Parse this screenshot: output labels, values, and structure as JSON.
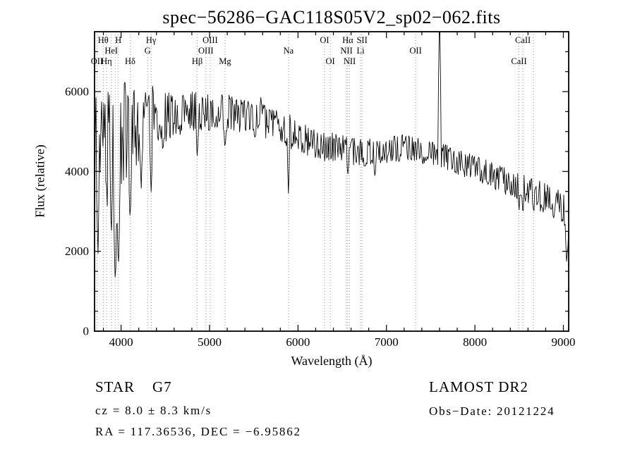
{
  "title": "spec−56286−GAC118S05V2_sp02−062.fits",
  "footer": {
    "class_label": "STAR    G7",
    "survey": "LAMOST DR2",
    "cz": "cz = 8.0 ± 8.3 km/s",
    "obs_date": "Obs−Date: 20121224",
    "coords": "RA = 117.36536, DEC = −6.95862"
  },
  "chart_data": {
    "type": "line",
    "title": "spec−56286−GAC118S05V2_sp02−062.fits",
    "xlabel": "Wavelength (Å)",
    "ylabel": "Flux (relative)",
    "xlim": [
      3700,
      9060
    ],
    "ylim": [
      0,
      7500
    ],
    "grid": false,
    "x_ticks": {
      "major": [
        4000,
        5000,
        6000,
        7000,
        8000,
        9000
      ],
      "minor_step": 200
    },
    "y_ticks": {
      "major": [
        0,
        2000,
        4000,
        6000
      ],
      "minor_step": 500
    },
    "line_color": "#000000",
    "marker_line_color": "#999999",
    "envelope": [
      [
        3700,
        3700
      ],
      [
        3740,
        4200
      ],
      [
        3780,
        4400
      ],
      [
        3820,
        4550
      ],
      [
        3860,
        4650
      ],
      [
        3900,
        4750
      ],
      [
        3950,
        4850
      ],
      [
        4000,
        4950
      ],
      [
        4050,
        5000
      ],
      [
        4100,
        5050
      ],
      [
        4150,
        5080
      ],
      [
        4200,
        5120
      ],
      [
        4250,
        5160
      ],
      [
        4300,
        5200
      ],
      [
        4350,
        5250
      ],
      [
        4400,
        5300
      ],
      [
        4500,
        5350
      ],
      [
        4600,
        5420
      ],
      [
        4700,
        5470
      ],
      [
        4800,
        5500
      ],
      [
        4900,
        5510
      ],
      [
        5000,
        5500
      ],
      [
        5100,
        5480
      ],
      [
        5200,
        5460
      ],
      [
        5300,
        5420
      ],
      [
        5400,
        5380
      ],
      [
        5500,
        5320
      ],
      [
        5600,
        5250
      ],
      [
        5700,
        5180
      ],
      [
        5800,
        5120
      ],
      [
        5900,
        5020
      ],
      [
        6000,
        4920
      ],
      [
        6100,
        4820
      ],
      [
        6200,
        4720
      ],
      [
        6300,
        4640
      ],
      [
        6400,
        4580
      ],
      [
        6500,
        4530
      ],
      [
        6600,
        4500
      ],
      [
        6700,
        4490
      ],
      [
        6800,
        4500
      ],
      [
        6900,
        4520
      ],
      [
        7000,
        4550
      ],
      [
        7100,
        4580
      ],
      [
        7200,
        4600
      ],
      [
        7300,
        4560
      ],
      [
        7400,
        4510
      ],
      [
        7500,
        4460
      ],
      [
        7600,
        4420
      ],
      [
        7700,
        4330
      ],
      [
        7800,
        4260
      ],
      [
        7900,
        4160
      ],
      [
        8000,
        4060
      ],
      [
        8100,
        3980
      ],
      [
        8200,
        3900
      ],
      [
        8300,
        3820
      ],
      [
        8400,
        3720
      ],
      [
        8500,
        3620
      ],
      [
        8600,
        3520
      ],
      [
        8700,
        3430
      ],
      [
        8800,
        3330
      ],
      [
        8900,
        3230
      ],
      [
        9000,
        3120
      ],
      [
        9060,
        3000
      ]
    ],
    "noise_amplitude": [
      [
        3700,
        1700
      ],
      [
        3760,
        1600
      ],
      [
        3850,
        1500
      ],
      [
        3950,
        1350
      ],
      [
        4050,
        1200
      ],
      [
        4150,
        1050
      ],
      [
        4250,
        900
      ],
      [
        4350,
        750
      ],
      [
        4450,
        650
      ],
      [
        4600,
        560
      ],
      [
        4800,
        510
      ],
      [
        5000,
        480
      ],
      [
        5300,
        460
      ],
      [
        5600,
        440
      ],
      [
        5900,
        440
      ],
      [
        6200,
        410
      ],
      [
        6500,
        380
      ],
      [
        6800,
        360
      ],
      [
        7100,
        340
      ],
      [
        7400,
        320
      ],
      [
        7700,
        320
      ],
      [
        8000,
        340
      ],
      [
        8300,
        350
      ],
      [
        8600,
        370
      ],
      [
        8900,
        420
      ],
      [
        9060,
        480
      ]
    ],
    "noise_seed": 20121224,
    "sample_step": 8,
    "absorption_dips": [
      [
        3740,
        1900,
        10
      ],
      [
        3889,
        2300,
        14
      ],
      [
        3934,
        1100,
        22
      ],
      [
        3969,
        1500,
        22
      ],
      [
        4102,
        2700,
        18
      ],
      [
        4227,
        3400,
        12
      ],
      [
        4340,
        3500,
        16
      ],
      [
        4472,
        4300,
        10
      ],
      [
        4861,
        4300,
        14
      ],
      [
        5175,
        4500,
        16
      ],
      [
        5893,
        3500,
        14
      ],
      [
        6563,
        3800,
        12
      ],
      [
        6870,
        3750,
        14
      ],
      [
        8498,
        3050,
        12
      ],
      [
        8542,
        2850,
        12
      ],
      [
        8662,
        2950,
        12
      ],
      [
        9040,
        1700,
        22
      ]
    ],
    "emission_spikes": [
      [
        3718,
        6200,
        6
      ],
      [
        4047,
        6550,
        7
      ],
      [
        4358,
        6300,
        6
      ],
      [
        5577,
        6050,
        6
      ],
      [
        7600,
        8300,
        14
      ]
    ],
    "spectral_lines": [
      {
        "wl": 3727,
        "label": "OII",
        "row": 3
      },
      {
        "wl": 3798,
        "label": "Hθ",
        "row": 1
      },
      {
        "wl": 3835,
        "label": "Hη",
        "row": 3
      },
      {
        "wl": 3889,
        "label": "HeI",
        "row": 2
      },
      {
        "wl": 3934,
        "label": "",
        "row": 0
      },
      {
        "wl": 3969,
        "label": "H",
        "row": 1
      },
      {
        "wl": 4102,
        "label": "Hδ",
        "row": 3
      },
      {
        "wl": 4300,
        "label": "G",
        "row": 2
      },
      {
        "wl": 4340,
        "label": "Hγ",
        "row": 1
      },
      {
        "wl": 4861,
        "label": "Hβ",
        "row": 3
      },
      {
        "wl": 4959,
        "label": "OIII",
        "row": 2
      },
      {
        "wl": 5007,
        "label": "OIII",
        "row": 1
      },
      {
        "wl": 5175,
        "label": "Mg",
        "row": 3
      },
      {
        "wl": 5893,
        "label": "Na",
        "row": 2
      },
      {
        "wl": 6300,
        "label": "OI",
        "row": 1
      },
      {
        "wl": 6365,
        "label": "OI",
        "row": 3
      },
      {
        "wl": 6548,
        "label": "NII",
        "row": 2
      },
      {
        "wl": 6563,
        "label": "Hα",
        "row": 1
      },
      {
        "wl": 6583,
        "label": "NII",
        "row": 3
      },
      {
        "wl": 6708,
        "label": "Li",
        "row": 2
      },
      {
        "wl": 6724,
        "label": "SII",
        "row": 1
      },
      {
        "wl": 7330,
        "label": "OII",
        "row": 2
      },
      {
        "wl": 8498,
        "label": "CaII",
        "row": 3
      },
      {
        "wl": 8542,
        "label": "CaII",
        "row": 1
      },
      {
        "wl": 8662,
        "label": "",
        "row": 0
      }
    ]
  }
}
